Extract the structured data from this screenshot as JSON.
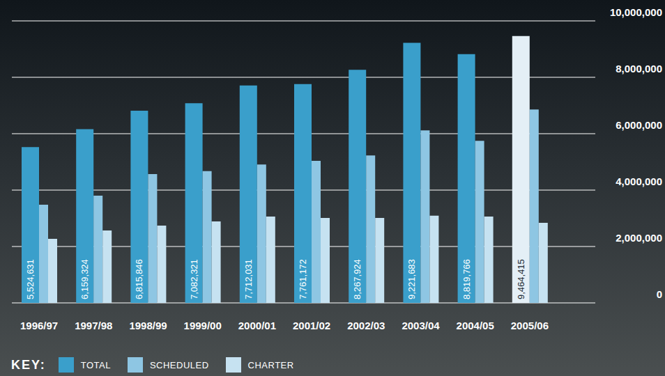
{
  "chart_data": {
    "type": "bar",
    "categories": [
      "1996/97",
      "1997/98",
      "1998/99",
      "1999/00",
      "2000/01",
      "2001/02",
      "2002/03",
      "2003/04",
      "2004/05",
      "2005/06"
    ],
    "series": [
      {
        "name": "TOTAL",
        "color": "#3a9fcb",
        "colors": [
          "#3a9fcb",
          "#3a9fcb",
          "#3a9fcb",
          "#3a9fcb",
          "#3a9fcb",
          "#3a9fcb",
          "#3a9fcb",
          "#3a9fcb",
          "#3a9fcb",
          "#e4eff6"
        ],
        "values": [
          5524631,
          6159324,
          6815846,
          7082321,
          7712031,
          7761172,
          8267924,
          9221683,
          8819766,
          9464415
        ],
        "data_labels": true,
        "value_labels": [
          "5,524,631",
          "6,159,324",
          "6,815,846",
          "7,082,321",
          "7,712,031",
          "7,761,172",
          "8,267,924",
          "9,221,683",
          "8,819,766",
          "9,464,415"
        ]
      },
      {
        "name": "SCHEDULED",
        "color": "#8ec6e3",
        "values": [
          3480000,
          3800000,
          4570000,
          4670000,
          4910000,
          5040000,
          5230000,
          6120000,
          5750000,
          6860000
        ]
      },
      {
        "name": "CHARTER",
        "color": "#c6e2f1",
        "values": [
          2270000,
          2570000,
          2740000,
          2890000,
          3060000,
          3010000,
          3010000,
          3090000,
          3060000,
          2840000
        ]
      }
    ],
    "ylim": [
      0,
      10000000
    ],
    "yticks": [
      0,
      {
        "value": 2000000,
        "label": "2,000,000"
      },
      {
        "value": 4000000,
        "label": "4,000,000"
      },
      {
        "value": 6000000,
        "label": "6,000,000"
      },
      {
        "value": 8000000,
        "label": "8,000,000"
      },
      {
        "value": 10000000,
        "label": "10,000,000"
      }
    ],
    "grid": true,
    "legend": "bottom left",
    "legend_title": "KEY:"
  }
}
